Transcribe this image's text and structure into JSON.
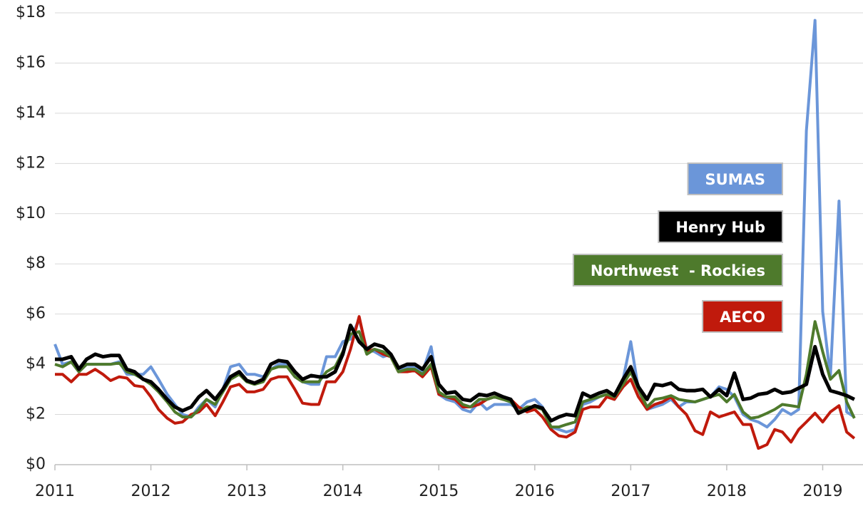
{
  "chart_data": {
    "type": "line",
    "xlim": [
      2011,
      2019.42
    ],
    "xticks": [
      2011,
      2012,
      2013,
      2014,
      2015,
      2016,
      2017,
      2018,
      2019
    ],
    "ylim": [
      0,
      18
    ],
    "yticks": [
      {
        "value": 0,
        "label": "$0"
      },
      {
        "value": 2,
        "label": "$2"
      },
      {
        "value": 4,
        "label": "$4"
      },
      {
        "value": 6,
        "label": "$6"
      },
      {
        "value": 8,
        "label": "$8"
      },
      {
        "value": 10,
        "label": "$10"
      },
      {
        "value": 12,
        "label": "$12"
      },
      {
        "value": 14,
        "label": "$14"
      },
      {
        "value": 16,
        "label": "$16"
      },
      {
        "value": 18,
        "label": "$18"
      }
    ],
    "grid": true,
    "x": [
      2011,
      2011.08,
      2011.17,
      2011.25,
      2011.33,
      2011.42,
      2011.5,
      2011.58,
      2011.67,
      2011.75,
      2011.83,
      2011.92,
      2012,
      2012.08,
      2012.17,
      2012.25,
      2012.33,
      2012.42,
      2012.5,
      2012.58,
      2012.67,
      2012.75,
      2012.83,
      2012.92,
      2013,
      2013.08,
      2013.17,
      2013.25,
      2013.33,
      2013.42,
      2013.5,
      2013.58,
      2013.67,
      2013.75,
      2013.83,
      2013.92,
      2014,
      2014.08,
      2014.17,
      2014.25,
      2014.33,
      2014.42,
      2014.5,
      2014.58,
      2014.67,
      2014.75,
      2014.83,
      2014.92,
      2015,
      2015.08,
      2015.17,
      2015.25,
      2015.33,
      2015.42,
      2015.5,
      2015.58,
      2015.67,
      2015.75,
      2015.83,
      2015.92,
      2016,
      2016.08,
      2016.17,
      2016.25,
      2016.33,
      2016.42,
      2016.5,
      2016.58,
      2016.67,
      2016.75,
      2016.83,
      2016.92,
      2017,
      2017.08,
      2017.17,
      2017.25,
      2017.33,
      2017.42,
      2017.5,
      2017.58,
      2017.67,
      2017.75,
      2017.83,
      2017.92,
      2018,
      2018.08,
      2018.17,
      2018.25,
      2018.33,
      2018.42,
      2018.5,
      2018.58,
      2018.67,
      2018.75,
      2018.83,
      2018.92,
      2019,
      2019.08,
      2019.17,
      2019.25,
      2019.33
    ],
    "series": [
      {
        "name": "SUMAS",
        "color": "#6b96d9",
        "values": [
          4.8,
          4.0,
          4.1,
          3.7,
          4.0,
          4.0,
          4.0,
          4.0,
          4.1,
          3.6,
          3.6,
          3.6,
          3.9,
          3.4,
          2.8,
          2.4,
          2.0,
          1.9,
          2.3,
          2.6,
          2.3,
          3.0,
          3.9,
          4.0,
          3.6,
          3.6,
          3.5,
          3.8,
          4.0,
          4.0,
          3.6,
          3.3,
          3.2,
          3.2,
          4.3,
          4.3,
          4.9,
          5.0,
          5.8,
          4.6,
          4.5,
          4.3,
          4.4,
          3.8,
          3.9,
          3.9,
          3.7,
          4.7,
          2.8,
          2.6,
          2.5,
          2.2,
          2.1,
          2.5,
          2.2,
          2.4,
          2.4,
          2.4,
          2.2,
          2.5,
          2.6,
          2.3,
          1.5,
          1.4,
          1.3,
          1.4,
          2.4,
          2.5,
          2.7,
          2.8,
          2.6,
          3.4,
          4.9,
          3.0,
          2.2,
          2.3,
          2.4,
          2.6,
          2.3,
          2.5,
          2.5,
          2.6,
          2.7,
          3.1,
          3.0,
          2.7,
          2.0,
          1.8,
          1.7,
          1.5,
          1.8,
          2.2,
          2.0,
          2.2,
          13.3,
          17.7,
          6.1,
          3.5,
          10.5,
          2.1,
          1.9
        ]
      },
      {
        "name": "Henry Hub",
        "color": "#000000",
        "values": [
          4.2,
          4.2,
          4.3,
          3.8,
          4.2,
          4.4,
          4.3,
          4.35,
          4.35,
          3.8,
          3.7,
          3.4,
          3.3,
          3.0,
          2.6,
          2.3,
          2.15,
          2.3,
          2.7,
          2.95,
          2.6,
          3.0,
          3.5,
          3.7,
          3.35,
          3.25,
          3.4,
          4.0,
          4.15,
          4.1,
          3.7,
          3.4,
          3.55,
          3.5,
          3.5,
          3.7,
          4.4,
          5.55,
          4.9,
          4.6,
          4.8,
          4.7,
          4.4,
          3.85,
          4.0,
          4.0,
          3.8,
          4.3,
          3.2,
          2.85,
          2.9,
          2.6,
          2.55,
          2.8,
          2.75,
          2.85,
          2.7,
          2.6,
          2.05,
          2.2,
          2.35,
          2.25,
          1.75,
          1.9,
          2.0,
          1.95,
          2.85,
          2.7,
          2.85,
          2.95,
          2.75,
          3.4,
          3.9,
          3.1,
          2.6,
          3.2,
          3.15,
          3.25,
          3.0,
          2.95,
          2.95,
          3.0,
          2.7,
          3.0,
          2.75,
          3.65,
          2.6,
          2.65,
          2.8,
          2.85,
          3.0,
          2.85,
          2.9,
          3.05,
          3.2,
          4.7,
          3.6,
          2.95,
          2.85,
          2.75,
          2.6
        ]
      },
      {
        "name": "Northwest  - Rockies",
        "color": "#4e7a2c",
        "values": [
          4.0,
          3.9,
          4.1,
          3.7,
          4.0,
          4.0,
          4.0,
          4.0,
          4.05,
          3.7,
          3.6,
          3.4,
          3.2,
          2.9,
          2.5,
          2.1,
          1.9,
          1.9,
          2.2,
          2.6,
          2.4,
          2.9,
          3.4,
          3.6,
          3.3,
          3.2,
          3.3,
          3.8,
          3.9,
          3.9,
          3.5,
          3.3,
          3.3,
          3.3,
          3.7,
          3.9,
          4.5,
          5.2,
          5.3,
          4.4,
          4.6,
          4.5,
          4.3,
          3.7,
          3.8,
          3.8,
          3.6,
          4.0,
          2.9,
          2.7,
          2.7,
          2.4,
          2.3,
          2.6,
          2.6,
          2.7,
          2.6,
          2.5,
          2.1,
          2.3,
          2.3,
          2.2,
          1.5,
          1.5,
          1.6,
          1.7,
          2.5,
          2.6,
          2.7,
          2.8,
          2.7,
          3.2,
          3.7,
          3.0,
          2.3,
          2.6,
          2.65,
          2.75,
          2.6,
          2.55,
          2.5,
          2.6,
          2.7,
          2.8,
          2.5,
          2.8,
          2.1,
          1.85,
          1.9,
          2.05,
          2.2,
          2.4,
          2.35,
          2.3,
          3.6,
          5.7,
          4.5,
          3.4,
          3.75,
          2.5,
          1.85
        ]
      },
      {
        "name": "AECO",
        "color": "#c01a0c",
        "values": [
          3.6,
          3.6,
          3.3,
          3.6,
          3.6,
          3.8,
          3.6,
          3.35,
          3.5,
          3.45,
          3.15,
          3.1,
          2.7,
          2.2,
          1.85,
          1.65,
          1.7,
          2.0,
          2.1,
          2.4,
          1.95,
          2.5,
          3.1,
          3.2,
          2.9,
          2.9,
          3.0,
          3.4,
          3.5,
          3.5,
          3.0,
          2.45,
          2.4,
          2.4,
          3.3,
          3.3,
          3.7,
          4.6,
          5.9,
          4.5,
          4.6,
          4.4,
          4.3,
          3.7,
          3.7,
          3.75,
          3.5,
          3.9,
          2.8,
          2.7,
          2.6,
          2.3,
          2.3,
          2.4,
          2.6,
          2.7,
          2.6,
          2.6,
          2.3,
          2.1,
          2.2,
          1.9,
          1.4,
          1.15,
          1.1,
          1.3,
          2.2,
          2.3,
          2.3,
          2.7,
          2.6,
          3.1,
          3.4,
          2.7,
          2.2,
          2.4,
          2.5,
          2.7,
          2.3,
          2.0,
          1.35,
          1.2,
          2.1,
          1.9,
          2.0,
          2.1,
          1.6,
          1.6,
          0.65,
          0.8,
          1.4,
          1.3,
          0.9,
          1.4,
          1.7,
          2.05,
          1.7,
          2.1,
          2.35,
          1.3,
          1.05
        ]
      }
    ]
  }
}
